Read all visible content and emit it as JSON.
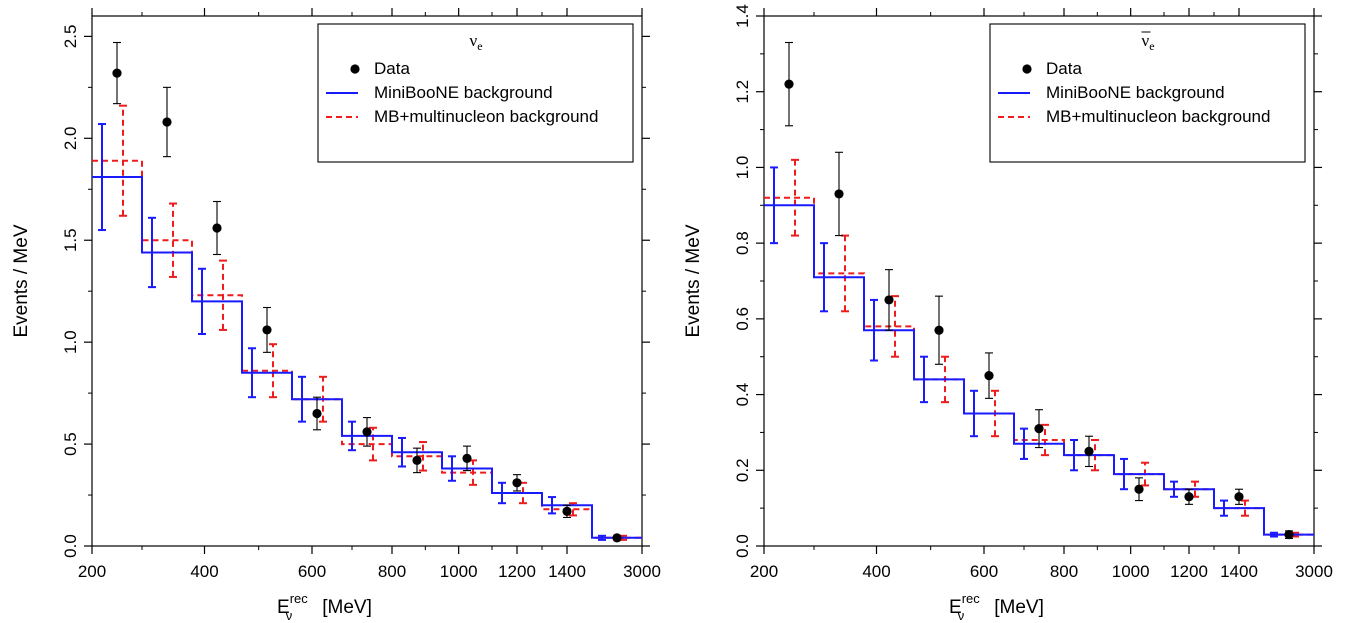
{
  "colors": {
    "data": "#000000",
    "miniboone": "#1a1aff",
    "multinucleon": "#ee1c1c"
  },
  "chart_data": [
    {
      "type": "line",
      "title": "",
      "legend_title": "ν",
      "legend_title_sub": "e",
      "legend_title_bar": false,
      "xlabel": "E",
      "xlabel_sup": "rec",
      "xlabel_sub": "ν",
      "xlabel_unit": "[MeV]",
      "ylabel": "Events / MeV",
      "ylim": [
        0,
        2.6
      ],
      "yticks": [
        "0.0",
        "0.5",
        "1.0",
        "1.5",
        "2.0",
        "2.5"
      ],
      "xtick_labels": [
        "200",
        "400",
        "600",
        "800",
        "1000",
        "1200",
        "1400",
        "3000"
      ],
      "bin_edges": [
        200,
        300,
        375,
        475,
        550,
        675,
        800,
        950,
        1100,
        1300,
        1500,
        3000
      ],
      "legend_position": "top-right",
      "grid": false,
      "series": [
        {
          "name": "Data",
          "style": "points",
          "x": [
            250,
            337.5,
            425,
            512.5,
            612.5,
            737.5,
            875,
            1025,
            1200,
            1400,
            2250
          ],
          "y": [
            2.32,
            2.08,
            1.56,
            1.06,
            0.65,
            0.56,
            0.42,
            0.43,
            0.31,
            0.17,
            0.04
          ],
          "err": [
            0.15,
            0.17,
            0.13,
            0.11,
            0.08,
            0.07,
            0.06,
            0.06,
            0.04,
            0.03,
            0.01
          ]
        },
        {
          "name": "MiniBooNE background",
          "style": "step",
          "y": [
            1.81,
            1.44,
            1.2,
            0.85,
            0.72,
            0.54,
            0.46,
            0.38,
            0.26,
            0.2,
            0.04
          ],
          "err": [
            0.26,
            0.17,
            0.16,
            0.12,
            0.11,
            0.07,
            0.07,
            0.06,
            0.05,
            0.04,
            0.01
          ]
        },
        {
          "name": "MB+multinucleon background",
          "style": "step",
          "y": [
            1.89,
            1.5,
            1.23,
            0.86,
            0.72,
            0.5,
            0.44,
            0.36,
            0.26,
            0.18,
            0.04
          ],
          "err": [
            0.27,
            0.18,
            0.17,
            0.13,
            0.11,
            0.08,
            0.07,
            0.06,
            0.05,
            0.03,
            0.01
          ]
        }
      ]
    },
    {
      "type": "line",
      "title": "",
      "legend_title": "ν",
      "legend_title_sub": "e",
      "legend_title_bar": true,
      "xlabel": "E",
      "xlabel_sup": "rec",
      "xlabel_sub": "ν",
      "xlabel_unit": "[MeV]",
      "ylabel": "Events / MeV",
      "ylim": [
        0,
        1.4
      ],
      "yticks": [
        "0.0",
        "0.2",
        "0.4",
        "0.6",
        "0.8",
        "1.0",
        "1.2",
        "1.4"
      ],
      "xtick_labels": [
        "200",
        "400",
        "600",
        "800",
        "1000",
        "1200",
        "1400",
        "3000"
      ],
      "bin_edges": [
        200,
        300,
        375,
        475,
        550,
        675,
        800,
        950,
        1100,
        1300,
        1500,
        3000
      ],
      "legend_position": "top-right",
      "grid": false,
      "series": [
        {
          "name": "Data",
          "style": "points",
          "x": [
            250,
            337.5,
            425,
            512.5,
            612.5,
            737.5,
            875,
            1025,
            1200,
            1400,
            2250
          ],
          "y": [
            1.22,
            0.93,
            0.65,
            0.57,
            0.45,
            0.31,
            0.25,
            0.15,
            0.13,
            0.13,
            0.03
          ],
          "err": [
            0.11,
            0.11,
            0.08,
            0.09,
            0.06,
            0.05,
            0.04,
            0.03,
            0.02,
            0.02,
            0.01
          ]
        },
        {
          "name": "MiniBooNE background",
          "style": "step",
          "y": [
            0.9,
            0.71,
            0.57,
            0.44,
            0.35,
            0.27,
            0.24,
            0.19,
            0.15,
            0.1,
            0.03
          ],
          "err": [
            0.1,
            0.09,
            0.08,
            0.06,
            0.06,
            0.04,
            0.04,
            0.04,
            0.02,
            0.02,
            0.005
          ]
        },
        {
          "name": "MB+multinucleon background",
          "style": "step",
          "y": [
            0.92,
            0.72,
            0.58,
            0.44,
            0.35,
            0.28,
            0.24,
            0.19,
            0.15,
            0.1,
            0.03
          ],
          "err": [
            0.1,
            0.1,
            0.08,
            0.06,
            0.06,
            0.04,
            0.04,
            0.03,
            0.02,
            0.02,
            0.005
          ]
        }
      ]
    }
  ]
}
